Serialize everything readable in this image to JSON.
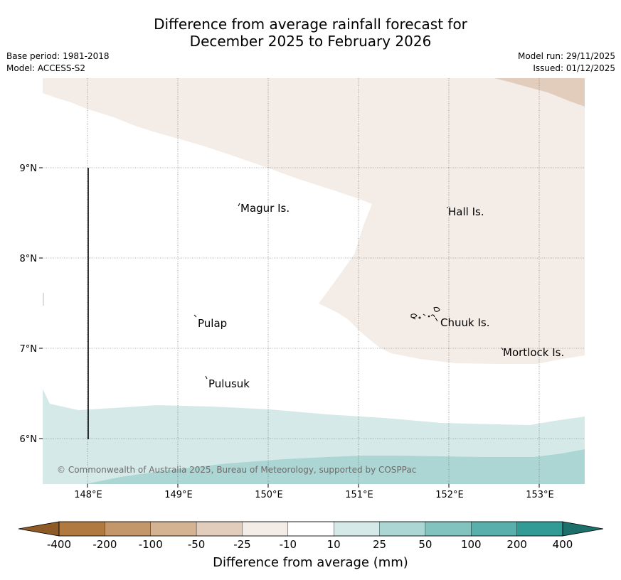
{
  "title": {
    "line1": "Difference from average rainfall forecast for",
    "line2": "December 2025 to February 2026"
  },
  "meta": {
    "base_period": "Base period: 1981-2018",
    "model": "Model: ACCESS-S2",
    "model_run": "Model run: 29/11/2025",
    "issued": "Issued: 01/12/2025"
  },
  "map": {
    "copyright": "© Commonwealth of Australia 2025, Bureau of Meteorology, supported by COSPPac",
    "lon_ticks": [
      "148°E",
      "149°E",
      "150°E",
      "151°E",
      "152°E",
      "153°E"
    ],
    "lat_ticks": [
      "9°N",
      "8°N",
      "7°N",
      "6°N"
    ],
    "places": [
      "Magur Is.",
      "Hall Is.",
      "Pulap",
      "Chuuk Is.",
      "Mortlock Is.",
      "Pulusuk"
    ],
    "regions": [
      {
        "category": "-25 to -10",
        "color": "#f4ece6"
      },
      {
        "category": "-50 to -25",
        "color": "#e2cdbd"
      },
      {
        "category": "10 to 25",
        "color": "#d5e9e8"
      },
      {
        "category": "25 to 50",
        "color": "#acd6d4"
      }
    ]
  },
  "legend": {
    "title": "Difference from average (mm)",
    "ticks": [
      "-400",
      "-200",
      "-100",
      "-50",
      "-25",
      "-10",
      "10",
      "25",
      "50",
      "100",
      "200",
      "400"
    ],
    "colors": [
      "#8e5a26",
      "#b0793f",
      "#c4976a",
      "#d4b392",
      "#e2cdbd",
      "#f4ece6",
      "#ffffff",
      "#d5e9e8",
      "#acd6d4",
      "#82c2bf",
      "#59afab",
      "#339b96",
      "#1c6f6b"
    ]
  }
}
